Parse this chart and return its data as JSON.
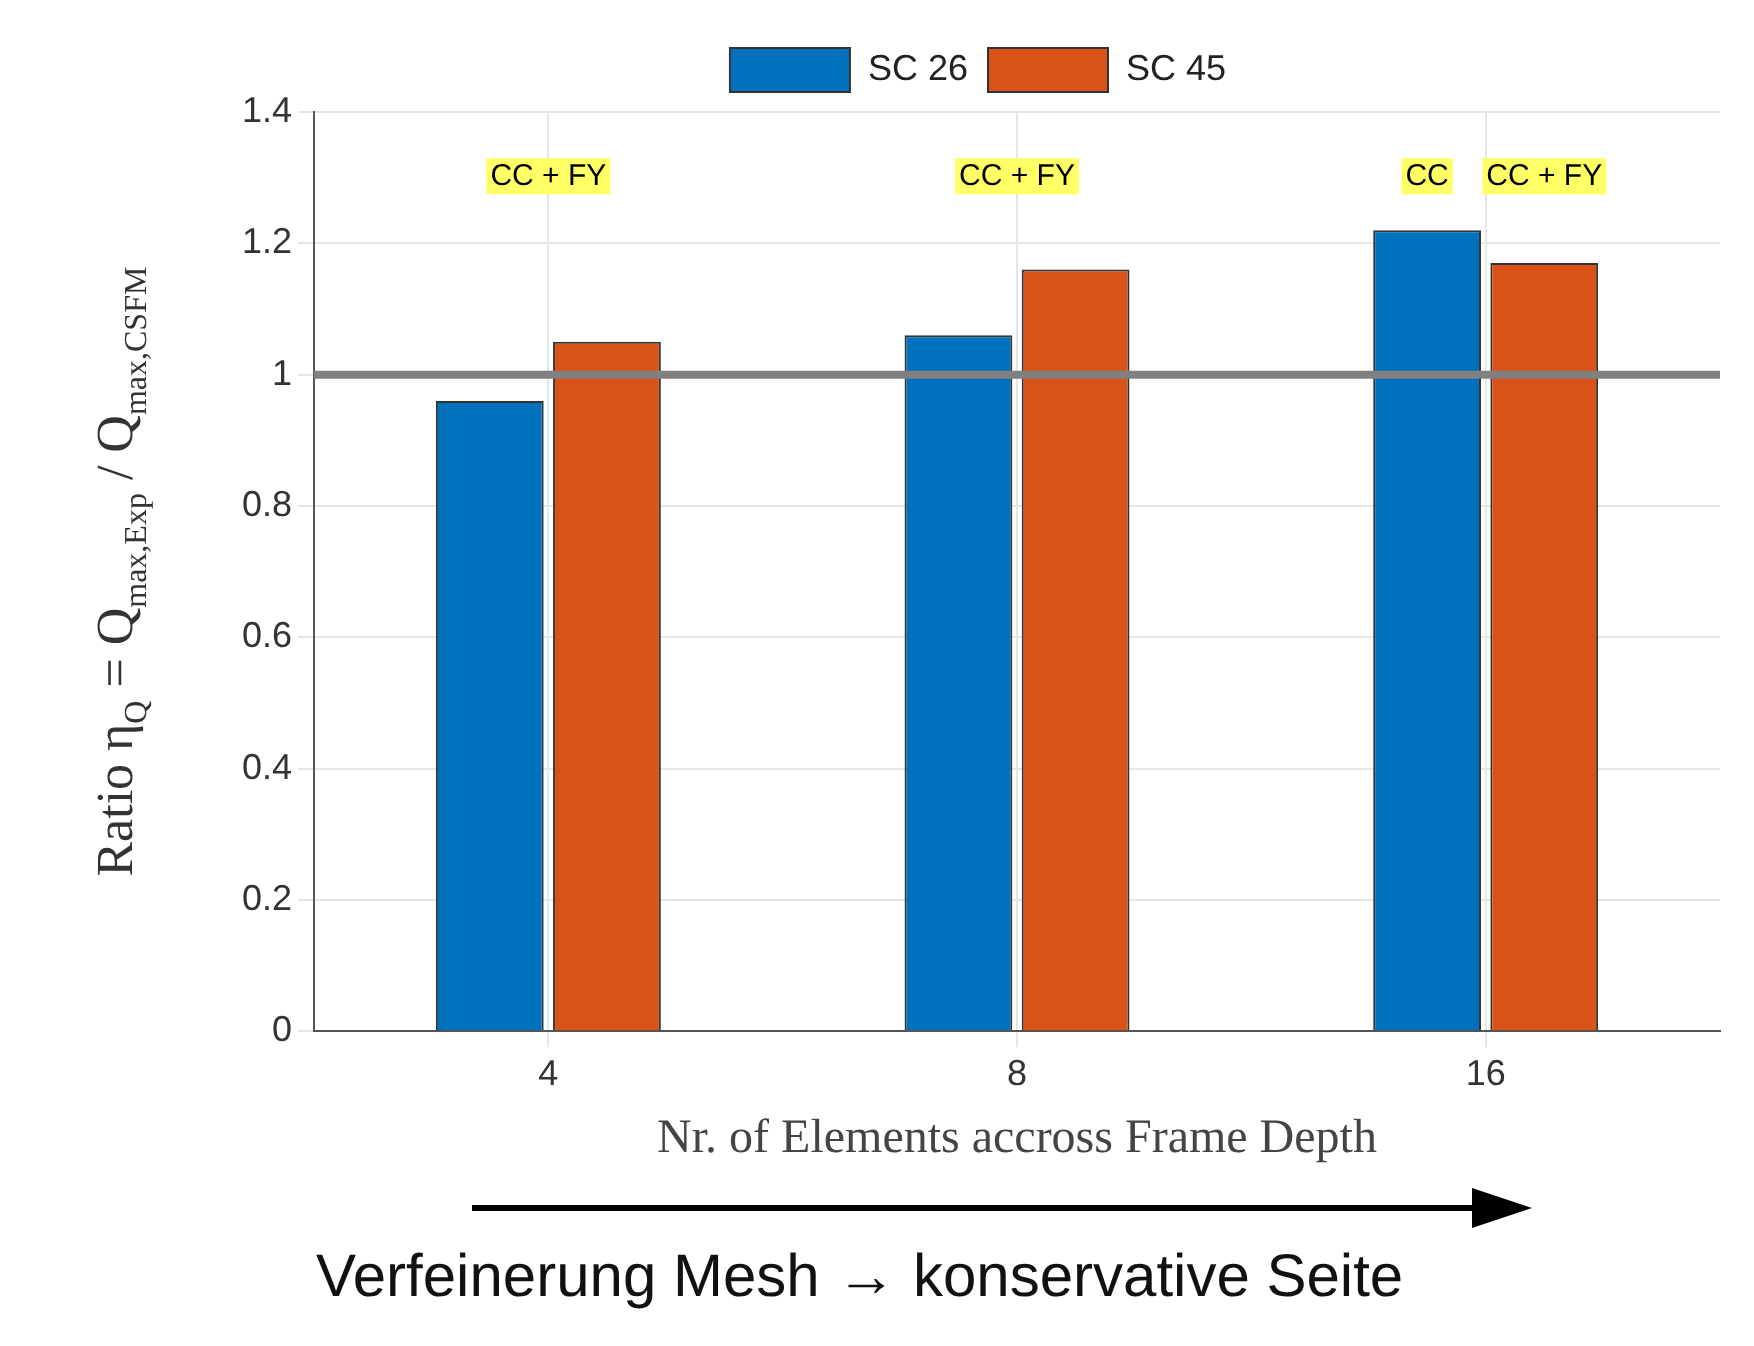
{
  "chart_data": {
    "type": "bar",
    "categories": [
      "4",
      "8",
      "16"
    ],
    "series": [
      {
        "name": "SC 26",
        "color": "#0072bd",
        "values": [
          0.96,
          1.06,
          1.22
        ]
      },
      {
        "name": "SC 45",
        "color": "#d95319",
        "values": [
          1.05,
          1.16,
          1.17
        ]
      }
    ],
    "ylabel": "Ratio η$_{Q}$ = Q$_{max,Exp}$ / Q$_{max,CSFM}$",
    "xlabel": "Nr. of Elements accross Frame Depth",
    "ylim": [
      0,
      1.4
    ],
    "yticks": [
      0,
      0.2,
      0.4,
      0.6,
      0.8,
      1,
      1.2,
      1.4
    ],
    "ref_lines": [
      {
        "axis": "y",
        "value": 1,
        "color": "#808080"
      }
    ],
    "annotations": [
      "CC + FY",
      "CC + FY",
      "CC",
      "CC + FY",
      "Verfeinerung Mesh → konservative Seite"
    ],
    "grid": true,
    "legend": "top"
  }
}
